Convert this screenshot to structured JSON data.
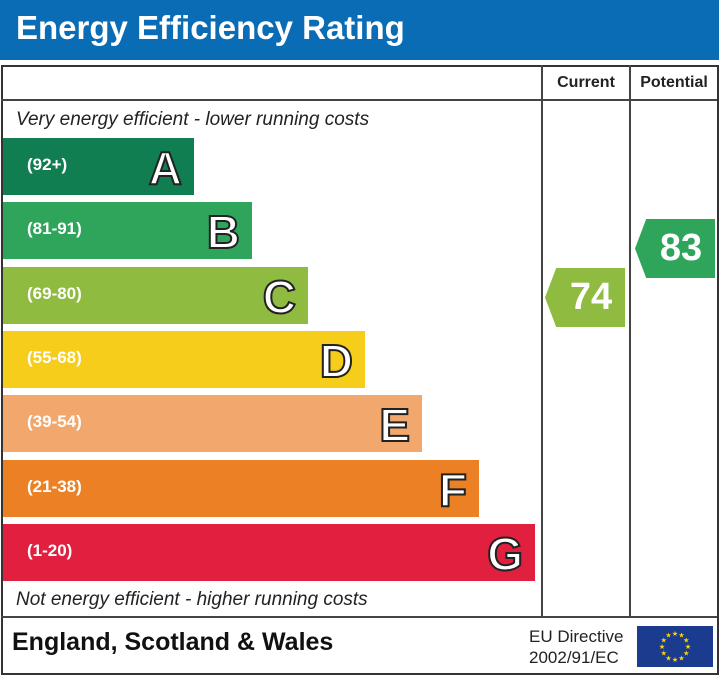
{
  "header": {
    "title": "Energy Efficiency Rating"
  },
  "columns": {
    "current": "Current",
    "potential": "Potential"
  },
  "notes": {
    "top": "Very energy efficient - lower running costs",
    "bottom": "Not energy efficient - higher running costs"
  },
  "footer": {
    "region": "England, Scotland & Wales",
    "directive_line1": "EU Directive",
    "directive_line2": "2002/91/EC",
    "flag_icon": "eu-flag-icon"
  },
  "chart_data": {
    "type": "bar",
    "categories": [
      "A",
      "B",
      "C",
      "D",
      "E",
      "F",
      "G"
    ],
    "bands": [
      {
        "letter": "A",
        "range": "(92+)",
        "color": "#117e52"
      },
      {
        "letter": "B",
        "range": "(81-91)",
        "color": "#2ea55a"
      },
      {
        "letter": "C",
        "range": "(69-80)",
        "color": "#8fbb40"
      },
      {
        "letter": "D",
        "range": "(55-68)",
        "color": "#f6cd1a"
      },
      {
        "letter": "E",
        "range": "(39-54)",
        "color": "#f2a86c"
      },
      {
        "letter": "F",
        "range": "(21-38)",
        "color": "#ec8025"
      },
      {
        "letter": "G",
        "range": "(1-20)",
        "color": "#e0203e"
      }
    ],
    "current": {
      "value": "74",
      "band": "C",
      "color": "#8fbb40"
    },
    "potential": {
      "value": "83",
      "band": "B",
      "color": "#2ea55a"
    }
  }
}
